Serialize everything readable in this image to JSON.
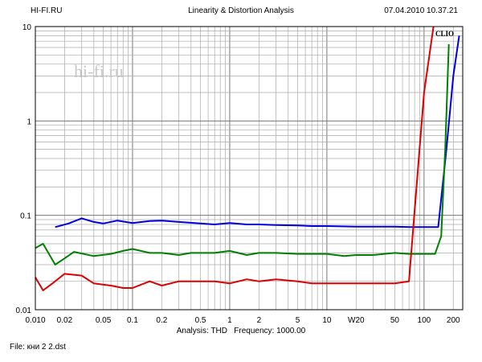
{
  "header": {
    "left": "HI-FI.RU",
    "center": "Linearity & Distortion Analysis",
    "right": "07.04.2010 10.37.21"
  },
  "watermark": "hi-fi.ru",
  "clio_label": "CLIO",
  "footer": {
    "analysis_label": "Analysis: THD",
    "frequency_label": "Frequency: 1000.00",
    "file_label": "File: кни 2 2.dst"
  },
  "chart_data": {
    "type": "line",
    "x_scale": "log",
    "y_scale": "log",
    "xlim": [
      0.01,
      250
    ],
    "ylim": [
      0.01,
      10
    ],
    "grid": true,
    "x_tick_labels": [
      {
        "v": 0.01,
        "label": "0.010"
      },
      {
        "v": 0.02,
        "label": "0.02"
      },
      {
        "v": 0.05,
        "label": "0.05"
      },
      {
        "v": 0.1,
        "label": "0.1"
      },
      {
        "v": 0.2,
        "label": "0.2"
      },
      {
        "v": 0.5,
        "label": "0.5"
      },
      {
        "v": 1,
        "label": "1"
      },
      {
        "v": 2,
        "label": "2"
      },
      {
        "v": 5,
        "label": "5"
      },
      {
        "v": 10,
        "label": "10"
      },
      {
        "v": 20,
        "label": "W20"
      },
      {
        "v": 50,
        "label": "50"
      },
      {
        "v": 100,
        "label": "100"
      },
      {
        "v": 200,
        "label": "200"
      }
    ],
    "y_tick_labels": [
      {
        "v": 10,
        "label": "10"
      },
      {
        "v": 1,
        "label": "1"
      },
      {
        "v": 0.1,
        "label": "0.1"
      },
      {
        "v": 0.01,
        "label": "0.01"
      }
    ],
    "series": [
      {
        "color": "#0000dd",
        "points": [
          [
            0.016,
            0.075
          ],
          [
            0.022,
            0.082
          ],
          [
            0.03,
            0.093
          ],
          [
            0.04,
            0.085
          ],
          [
            0.05,
            0.082
          ],
          [
            0.07,
            0.088
          ],
          [
            0.1,
            0.083
          ],
          [
            0.15,
            0.087
          ],
          [
            0.2,
            0.088
          ],
          [
            0.3,
            0.085
          ],
          [
            0.5,
            0.082
          ],
          [
            0.7,
            0.08
          ],
          [
            1,
            0.083
          ],
          [
            1.5,
            0.08
          ],
          [
            2,
            0.08
          ],
          [
            3,
            0.079
          ],
          [
            5,
            0.078
          ],
          [
            7,
            0.077
          ],
          [
            10,
            0.077
          ],
          [
            20,
            0.076
          ],
          [
            30,
            0.076
          ],
          [
            50,
            0.076
          ],
          [
            70,
            0.075
          ],
          [
            100,
            0.075
          ],
          [
            140,
            0.075
          ],
          [
            170,
            0.5
          ],
          [
            200,
            3
          ],
          [
            230,
            8
          ]
        ]
      },
      {
        "color": "#008000",
        "points": [
          [
            0.01,
            0.045
          ],
          [
            0.012,
            0.05
          ],
          [
            0.016,
            0.03
          ],
          [
            0.02,
            0.035
          ],
          [
            0.025,
            0.041
          ],
          [
            0.04,
            0.037
          ],
          [
            0.06,
            0.039
          ],
          [
            0.08,
            0.042
          ],
          [
            0.1,
            0.044
          ],
          [
            0.15,
            0.04
          ],
          [
            0.2,
            0.04
          ],
          [
            0.3,
            0.038
          ],
          [
            0.4,
            0.04
          ],
          [
            0.7,
            0.04
          ],
          [
            1,
            0.042
          ],
          [
            1.5,
            0.038
          ],
          [
            2,
            0.04
          ],
          [
            3,
            0.04
          ],
          [
            5,
            0.039
          ],
          [
            7,
            0.039
          ],
          [
            10,
            0.039
          ],
          [
            15,
            0.037
          ],
          [
            20,
            0.038
          ],
          [
            30,
            0.038
          ],
          [
            50,
            0.04
          ],
          [
            70,
            0.039
          ],
          [
            100,
            0.039
          ],
          [
            130,
            0.039
          ],
          [
            150,
            0.06
          ],
          [
            165,
            0.5
          ],
          [
            180,
            6.5
          ]
        ]
      },
      {
        "color": "#dd0000",
        "points": [
          [
            0.01,
            0.022
          ],
          [
            0.012,
            0.016
          ],
          [
            0.015,
            0.019
          ],
          [
            0.02,
            0.024
          ],
          [
            0.03,
            0.023
          ],
          [
            0.04,
            0.019
          ],
          [
            0.06,
            0.018
          ],
          [
            0.08,
            0.017
          ],
          [
            0.1,
            0.017
          ],
          [
            0.15,
            0.02
          ],
          [
            0.2,
            0.018
          ],
          [
            0.3,
            0.02
          ],
          [
            0.5,
            0.02
          ],
          [
            0.7,
            0.02
          ],
          [
            1,
            0.019
          ],
          [
            1.5,
            0.021
          ],
          [
            2,
            0.02
          ],
          [
            3,
            0.021
          ],
          [
            5,
            0.02
          ],
          [
            7,
            0.019
          ],
          [
            10,
            0.019
          ],
          [
            20,
            0.019
          ],
          [
            30,
            0.019
          ],
          [
            50,
            0.019
          ],
          [
            70,
            0.02
          ],
          [
            100,
            2
          ],
          [
            125,
            10
          ]
        ]
      }
    ]
  }
}
